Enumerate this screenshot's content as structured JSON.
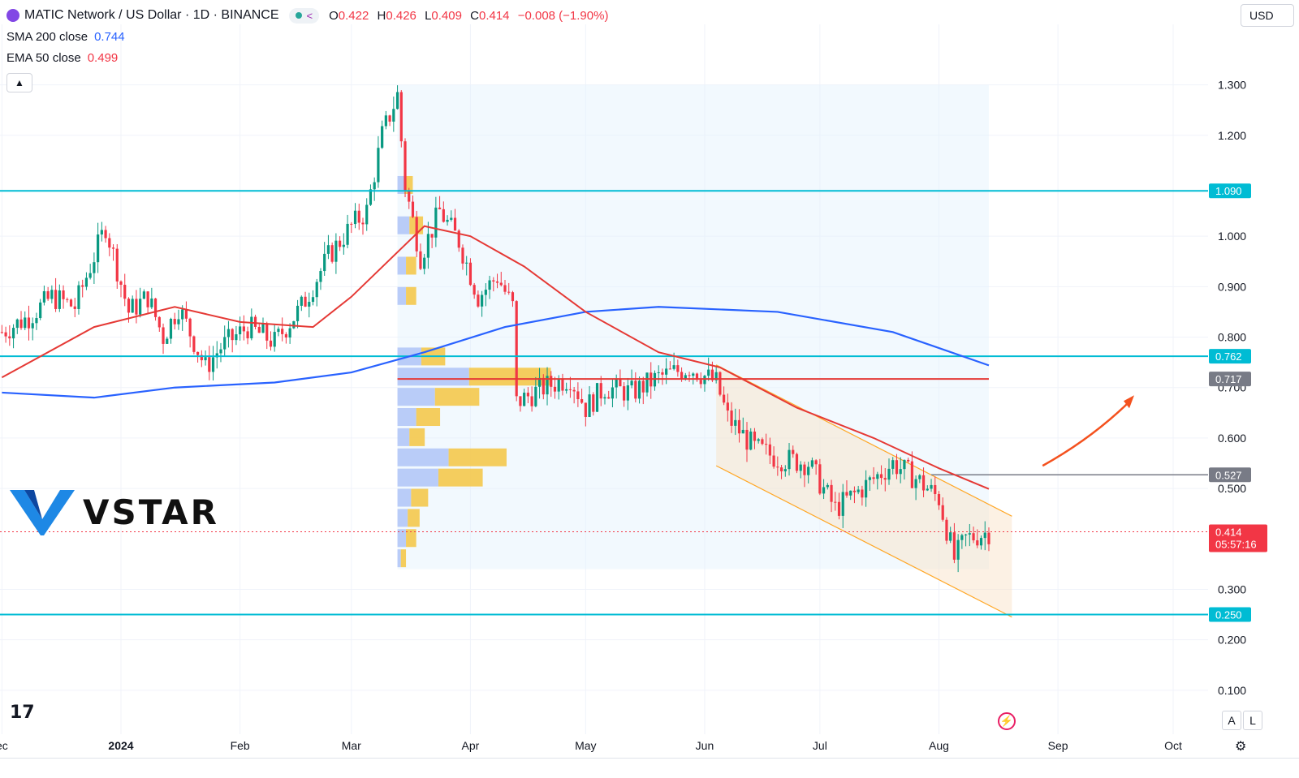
{
  "header": {
    "symbol": "MATIC Network / US Dollar · 1D · BINANCE",
    "open_label": "O",
    "open": "0.422",
    "high_label": "H",
    "high": "0.426",
    "low_label": "L",
    "low": "0.409",
    "close_label": "C",
    "close": "0.414",
    "change": "−0.008 (−1.90%)",
    "currency": "USD"
  },
  "indicators": [
    {
      "name": "SMA 200 close",
      "value": "0.744",
      "color": "#2962ff"
    },
    {
      "name": "EMA 50 close",
      "value": "0.499",
      "color": "#f23645"
    }
  ],
  "watermark": "VSTAR",
  "buttons": {
    "auto": "A",
    "log": "L"
  },
  "colors": {
    "up": "#089981",
    "down": "#f23645",
    "level": "#00bcd4",
    "sma": "#2962ff",
    "ema": "#e53935",
    "poc": "#e53935"
  },
  "chart_data": {
    "type": "candlestick",
    "y_ticks": [
      "1.300",
      "1.200",
      "1.000",
      "0.900",
      "0.800",
      "0.700",
      "0.600",
      "0.500",
      "0.300",
      "0.200",
      "0.100"
    ],
    "x_ticks": [
      "ec",
      "2024",
      "Feb",
      "Mar",
      "Apr",
      "May",
      "Jun",
      "Jul",
      "Aug",
      "Sep",
      "Oct"
    ],
    "ylim": [
      0.0,
      1.42
    ],
    "horizontal_levels": [
      {
        "value": 1.09,
        "label": "1.090"
      },
      {
        "value": 0.762,
        "label": "0.762"
      },
      {
        "value": 0.25,
        "label": "0.250"
      }
    ],
    "poc": {
      "value": 0.717,
      "label": "0.717"
    },
    "resistance_mark": {
      "value": 0.527,
      "label": "0.527"
    },
    "last_price": {
      "value": 0.414,
      "label": "0.414",
      "countdown": "05:57:16"
    },
    "price_path": [
      [
        "2023-12-01",
        0.81
      ],
      [
        "2023-12-08",
        0.84
      ],
      [
        "2023-12-14",
        0.88
      ],
      [
        "2023-12-20",
        0.86
      ],
      [
        "2023-12-26",
        0.98
      ],
      [
        "2023-12-28",
        1.02
      ],
      [
        "2024-01-03",
        0.85
      ],
      [
        "2024-01-08",
        0.88
      ],
      [
        "2024-01-12",
        0.8
      ],
      [
        "2024-01-16",
        0.86
      ],
      [
        "2024-01-23",
        0.74
      ],
      [
        "2024-01-27",
        0.78
      ],
      [
        "2024-02-03",
        0.82
      ],
      [
        "2024-02-10",
        0.79
      ],
      [
        "2024-02-17",
        0.86
      ],
      [
        "2024-02-24",
        0.96
      ],
      [
        "2024-03-01",
        1.02
      ],
      [
        "2024-03-05",
        1.05
      ],
      [
        "2024-03-09",
        1.2
      ],
      [
        "2024-03-13",
        1.28
      ],
      [
        "2024-03-15",
        1.1
      ],
      [
        "2024-03-19",
        0.96
      ],
      [
        "2024-03-24",
        1.05
      ],
      [
        "2024-03-29",
        0.99
      ],
      [
        "2024-04-03",
        0.88
      ],
      [
        "2024-04-08",
        0.92
      ],
      [
        "2024-04-12",
        0.86
      ],
      [
        "2024-04-13",
        0.67
      ],
      [
        "2024-04-20",
        0.7
      ],
      [
        "2024-04-27",
        0.72
      ],
      [
        "2024-05-01",
        0.66
      ],
      [
        "2024-05-06",
        0.7
      ],
      [
        "2024-05-13",
        0.69
      ],
      [
        "2024-05-20",
        0.72
      ],
      [
        "2024-05-28",
        0.74
      ],
      [
        "2024-06-04",
        0.71
      ],
      [
        "2024-06-07",
        0.64
      ],
      [
        "2024-06-14",
        0.58
      ],
      [
        "2024-06-20",
        0.56
      ],
      [
        "2024-06-28",
        0.55
      ],
      [
        "2024-07-05",
        0.46
      ],
      [
        "2024-07-12",
        0.5
      ],
      [
        "2024-07-20",
        0.55
      ],
      [
        "2024-07-26",
        0.52
      ],
      [
        "2024-08-01",
        0.48
      ],
      [
        "2024-08-05",
        0.36
      ],
      [
        "2024-08-08",
        0.4
      ],
      [
        "2024-08-14",
        0.414
      ]
    ],
    "sma200": [
      [
        "2023-12-01",
        0.69
      ],
      [
        "2023-12-25",
        0.68
      ],
      [
        "2024-01-15",
        0.7
      ],
      [
        "2024-02-10",
        0.71
      ],
      [
        "2024-03-01",
        0.73
      ],
      [
        "2024-03-20",
        0.77
      ],
      [
        "2024-04-10",
        0.82
      ],
      [
        "2024-05-01",
        0.85
      ],
      [
        "2024-05-20",
        0.86
      ],
      [
        "2024-06-20",
        0.85
      ],
      [
        "2024-07-20",
        0.81
      ],
      [
        "2024-08-14",
        0.744
      ]
    ],
    "ema50": [
      [
        "2023-12-01",
        0.72
      ],
      [
        "2023-12-25",
        0.82
      ],
      [
        "2024-01-15",
        0.86
      ],
      [
        "2024-02-01",
        0.83
      ],
      [
        "2024-02-20",
        0.82
      ],
      [
        "2024-03-01",
        0.88
      ],
      [
        "2024-03-20",
        1.02
      ],
      [
        "2024-04-01",
        1.0
      ],
      [
        "2024-04-15",
        0.94
      ],
      [
        "2024-05-01",
        0.85
      ],
      [
        "2024-05-20",
        0.77
      ],
      [
        "2024-06-05",
        0.74
      ],
      [
        "2024-06-25",
        0.66
      ],
      [
        "2024-07-15",
        0.6
      ],
      [
        "2024-08-01",
        0.54
      ],
      [
        "2024-08-14",
        0.499
      ]
    ],
    "volume_profile": {
      "start": "2024-03-13",
      "end": "2024-08-14",
      "price_range": [
        0.34,
        1.3
      ],
      "rows": [
        {
          "price": 1.1,
          "up": 0.04,
          "down": 0.05
        },
        {
          "price": 1.02,
          "up": 0.07,
          "down": 0.08
        },
        {
          "price": 0.94,
          "up": 0.05,
          "down": 0.06
        },
        {
          "price": 0.88,
          "up": 0.05,
          "down": 0.06
        },
        {
          "price": 0.76,
          "up": 0.14,
          "down": 0.14
        },
        {
          "price": 0.72,
          "up": 0.42,
          "down": 0.48
        },
        {
          "price": 0.68,
          "up": 0.22,
          "down": 0.26
        },
        {
          "price": 0.64,
          "up": 0.11,
          "down": 0.14
        },
        {
          "price": 0.6,
          "up": 0.07,
          "down": 0.09
        },
        {
          "price": 0.56,
          "up": 0.3,
          "down": 0.34
        },
        {
          "price": 0.52,
          "up": 0.24,
          "down": 0.26
        },
        {
          "price": 0.48,
          "up": 0.08,
          "down": 0.1
        },
        {
          "price": 0.44,
          "up": 0.06,
          "down": 0.07
        },
        {
          "price": 0.4,
          "up": 0.05,
          "down": 0.06
        },
        {
          "price": 0.36,
          "up": 0.02,
          "down": 0.03
        }
      ]
    },
    "channel": {
      "upper": [
        [
          "2024-06-04",
          0.745
        ],
        [
          "2024-08-20",
          0.445
        ]
      ],
      "lower": [
        [
          "2024-06-04",
          0.545
        ],
        [
          "2024-08-20",
          0.245
        ]
      ]
    },
    "forecast_arrow": [
      [
        "2024-08-28",
        0.545
      ],
      [
        "2024-09-10",
        0.6
      ],
      [
        "2024-09-20",
        0.675
      ]
    ]
  }
}
